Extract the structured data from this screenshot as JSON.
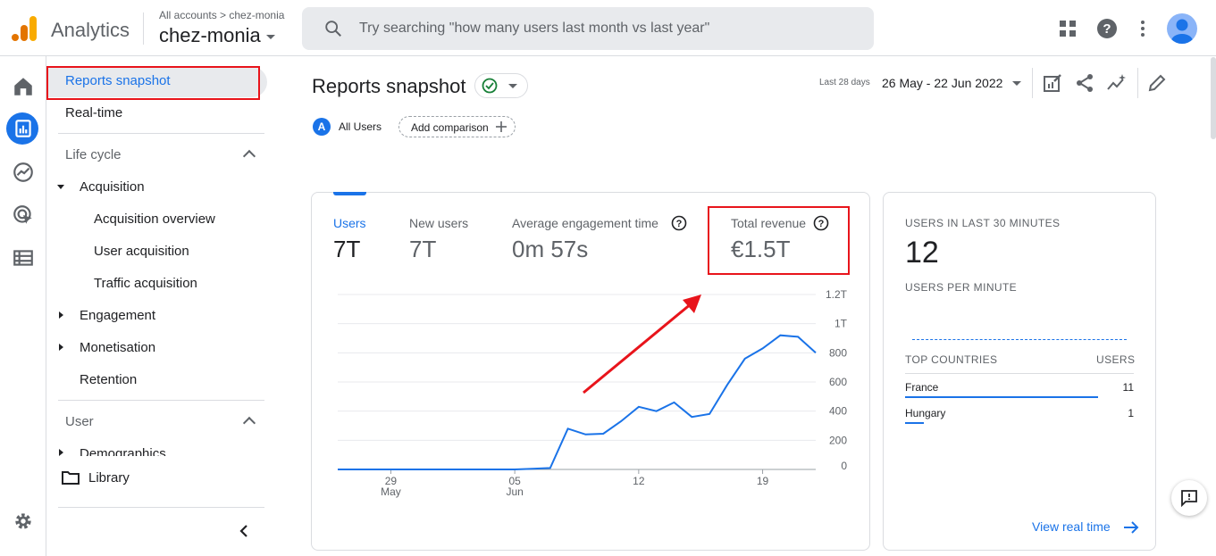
{
  "topbar": {
    "app_name": "Analytics",
    "account_path": "All accounts > chez-monia",
    "property_name": "chez-monia",
    "search_placeholder": "Try searching \"how many users last month vs last year\"",
    "icons": [
      "apps-grid-icon",
      "help-icon",
      "more-vert-icon",
      "account-avatar"
    ]
  },
  "rail": {
    "icons": [
      "home-icon",
      "reports-icon",
      "explore-icon",
      "advertising-icon",
      "configure-icon",
      "settings-icon"
    ],
    "active": "reports-icon"
  },
  "nav": {
    "reports_snapshot": "Reports snapshot",
    "realtime": "Real-time",
    "lifecycle_header": "Life cycle",
    "acquisition": "Acquisition",
    "acquisition_overview": "Acquisition overview",
    "user_acquisition": "User acquisition",
    "traffic_acquisition": "Traffic acquisition",
    "engagement": "Engagement",
    "monetisation": "Monetisation",
    "retention": "Retention",
    "user_header": "User",
    "demographics": "Demographics",
    "library": "Library"
  },
  "header": {
    "title": "Reports snapshot",
    "date_small": "Last 28 days",
    "date_range": "26 May - 22 Jun 2022",
    "comparison_badge": "A",
    "comparison_label": "All Users",
    "add_comparison": "Add comparison"
  },
  "metrics": [
    {
      "label": "Users",
      "value": "7T"
    },
    {
      "label": "New users",
      "value": "7T"
    },
    {
      "label": "Average engagement time",
      "value": "0m 57s"
    },
    {
      "label": "Total revenue",
      "value": "€1.5T"
    }
  ],
  "chart_data": {
    "type": "line",
    "x": [
      "26 May",
      "27 May",
      "28 May",
      "29 May",
      "30 May",
      "31 May",
      "01 Jun",
      "02 Jun",
      "03 Jun",
      "04 Jun",
      "05 Jun",
      "06 Jun",
      "07 Jun",
      "08 Jun",
      "09 Jun",
      "10 Jun",
      "11 Jun",
      "12 Jun",
      "13 Jun",
      "14 Jun",
      "15 Jun",
      "16 Jun",
      "17 Jun",
      "18 Jun",
      "19 Jun",
      "20 Jun",
      "21 Jun",
      "22 Jun"
    ],
    "series": [
      {
        "values": [
          0,
          0,
          0,
          0,
          0,
          0,
          0,
          0,
          0,
          0,
          0,
          5,
          10,
          280,
          240,
          245,
          330,
          430,
          400,
          460,
          360,
          380,
          580,
          760,
          830,
          920,
          910,
          800
        ]
      }
    ],
    "x_tick_labels": [
      {
        "day": "29",
        "month": "May"
      },
      {
        "day": "05",
        "month": "Jun"
      },
      {
        "day": "12",
        "month": ""
      },
      {
        "day": "19",
        "month": ""
      }
    ],
    "y_tick_labels": [
      "0",
      "200",
      "400",
      "600",
      "800",
      "1T",
      "1.2T"
    ],
    "ylim": [
      0,
      1200
    ],
    "color": "#1a73e8",
    "grid": true
  },
  "realtime": {
    "users_title": "USERS IN LAST 30 MINUTES",
    "users_value": "12",
    "per_minute_title": "USERS PER MINUTE",
    "top_countries": "TOP COUNTRIES",
    "users_col": "USERS",
    "countries": [
      {
        "name": "France",
        "users": "11",
        "share": 0.92
      },
      {
        "name": "Hungary",
        "users": "1",
        "share": 0.09
      }
    ],
    "view_link": "View real time"
  },
  "colors": {
    "accent": "#1a73e8",
    "annotation": "#e8141b"
  }
}
